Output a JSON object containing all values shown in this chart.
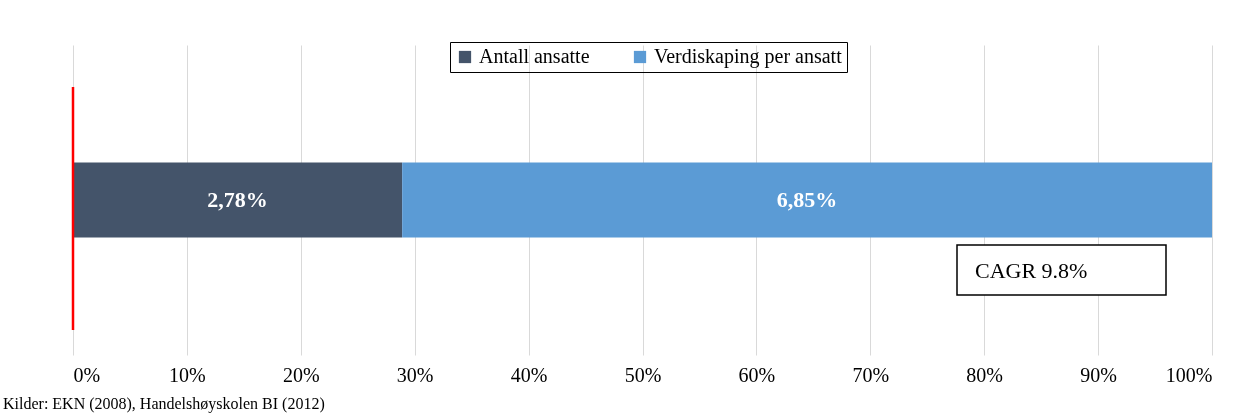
{
  "chart_data": {
    "type": "bar",
    "orientation": "horizontal",
    "stacked": true,
    "categories": [
      null
    ],
    "series": [
      {
        "name": "Antall ansatte",
        "color": "#44546a",
        "values": [
          28.9
        ]
      },
      {
        "name": "Verdiskaping per ansatt",
        "color": "#5b9bd5",
        "values": [
          71.1
        ]
      }
    ],
    "xlim": [
      0,
      100
    ],
    "xticks": [
      {
        "value": 0,
        "label": "0%"
      },
      {
        "value": 10,
        "label": "10%"
      },
      {
        "value": 20,
        "label": "20%"
      },
      {
        "value": 30,
        "label": "30%"
      },
      {
        "value": 40,
        "label": "40%"
      },
      {
        "value": 50,
        "label": "50%"
      },
      {
        "value": 60,
        "label": "60%"
      },
      {
        "value": 70,
        "label": "70%"
      },
      {
        "value": 80,
        "label": "80%"
      },
      {
        "value": 90,
        "label": "90%"
      },
      {
        "value": 100,
        "label": "100%"
      }
    ],
    "grid": "x",
    "legend": "top",
    "ref_lines": [
      {
        "axis": "x",
        "value": 0,
        "color": "#ff0000"
      }
    ],
    "annotations": [
      "2,78%",
      "6,85%",
      "CAGR 9.8%",
      "Kilder: EKN (2008), Handelshøyskolen BI (2012)"
    ]
  }
}
